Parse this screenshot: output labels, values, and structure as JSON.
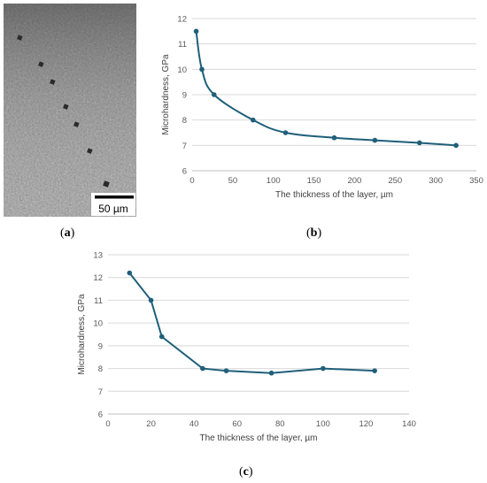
{
  "panels": [
    {
      "open": "(",
      "letter": "a",
      "close": ")"
    },
    {
      "open": "(",
      "letter": "b",
      "close": ")"
    },
    {
      "open": "(",
      "letter": "c",
      "close": ")"
    }
  ],
  "micrograph": {
    "scale_bar_label": "50 µm"
  },
  "chart_data": [
    {
      "type": "line",
      "title": "",
      "xlabel": "The thickness of the layer, µm",
      "ylabel": "Microhardness, GPa",
      "xlim": [
        0,
        350
      ],
      "ylim": [
        6,
        12
      ],
      "xticks": [
        0,
        50,
        100,
        150,
        200,
        250,
        300,
        350
      ],
      "yticks": [
        6,
        7,
        8,
        9,
        10,
        11,
        12
      ],
      "grid": "horizontal",
      "series": [
        {
          "x": [
            5,
            12,
            27,
            75,
            115,
            175,
            225,
            280,
            325
          ],
          "y": [
            11.5,
            10.0,
            9.0,
            8.0,
            7.5,
            7.3,
            7.2,
            7.1,
            7.0
          ],
          "color": "#1f5f7a",
          "smooth": true
        }
      ]
    },
    {
      "type": "line",
      "title": "",
      "xlabel": "The thickness of the layer, µm",
      "ylabel": "Microhardness, GPa",
      "xlim": [
        0,
        140
      ],
      "ylim": [
        6,
        13
      ],
      "xticks": [
        0,
        20,
        40,
        60,
        80,
        100,
        120,
        140
      ],
      "yticks": [
        6,
        7,
        8,
        9,
        10,
        11,
        12,
        13
      ],
      "grid": "horizontal",
      "series": [
        {
          "x": [
            10,
            20,
            25,
            44,
            55,
            76,
            100,
            124
          ],
          "y": [
            12.2,
            11.0,
            9.4,
            8.0,
            7.9,
            7.8,
            8.0,
            7.9
          ],
          "color": "#1f5f7a",
          "smooth": false
        }
      ]
    }
  ]
}
